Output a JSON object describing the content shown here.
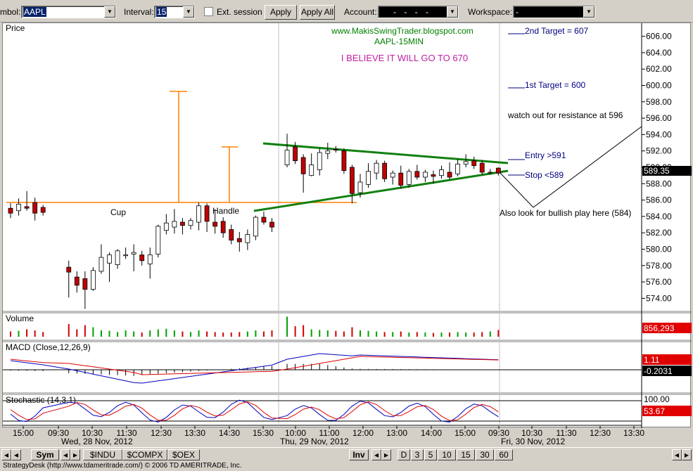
{
  "toolbar": {
    "symbol_label": "mbol:",
    "symbol_value": "AAPL",
    "interval_label": "Interval:",
    "interval_value": "15",
    "ext_session_label": "Ext. session",
    "apply_label": "Apply",
    "apply_all_label": "Apply All",
    "account_label": "Account:",
    "account_value": "- - - -",
    "workspace_label": "Workspace:",
    "workspace_value": "-"
  },
  "price_pane": {
    "title": "Price",
    "blog": "www.MakisSwingTrader.blogspot.com",
    "subtitle": "AAPL-15MIN",
    "belief": "I BELIEVE IT WILL GO TO 670",
    "target2": "2nd Target = 607",
    "target1": "1st Target = 600",
    "resistance": "watch out for resistance at 596",
    "entry": "Entry >591",
    "stop": "Stop <589",
    "bullish": "Also look for bullish play here (584)",
    "cup": "Cup",
    "handle": "Handle",
    "last_price": "589.35",
    "y_ticks": [
      "606.00",
      "604.00",
      "602.00",
      "600.00",
      "598.00",
      "596.00",
      "594.00",
      "592.00",
      "590.00",
      "588.00",
      "586.00",
      "584.00",
      "582.00",
      "580.00",
      "578.00",
      "576.00",
      "574.00"
    ]
  },
  "volume_pane": {
    "title": "Volume",
    "last": "856,293"
  },
  "macd_pane": {
    "title": "MACD (Close,12,26,9)",
    "value1": "1.11",
    "value2": "-0.2031"
  },
  "stoch_pane": {
    "title": "Stochastic (14,3,1)",
    "top": "100.00",
    "value": "53.67"
  },
  "x_axis": {
    "times": [
      "15:00",
      "09:30",
      "10:30",
      "11:30",
      "12:30",
      "13:30",
      "14:30",
      "15:30",
      "10:00",
      "11:00",
      "12:00",
      "13:00",
      "14:00",
      "15:00",
      "09:30",
      "10:30",
      "11:30",
      "12:30",
      "13:30"
    ],
    "dates": [
      "Wed, 28 Nov, 2012",
      "Thu, 29 Nov, 2012",
      "Fri, 30 Nov, 2012"
    ]
  },
  "navbar": {
    "sym": "Sym",
    "tabs": [
      "$INDU",
      "$COMPX",
      "$OEX"
    ],
    "inv": "Inv",
    "periods": [
      "D",
      "3",
      "5",
      "10",
      "15",
      "30",
      "60"
    ]
  },
  "status": "StrategyDesk (http://www.tdameritrade.com/) © 2006 TD AMERITRADE, Inc.",
  "chart_data": {
    "type": "candlestick",
    "title": "AAPL-15MIN",
    "ylabel": "Price",
    "ylim": [
      572.4,
      607.6
    ],
    "candles": [
      {
        "o": 585.0,
        "h": 585.6,
        "l": 583.8,
        "c": 584.4
      },
      {
        "o": 584.7,
        "h": 586.2,
        "l": 584.1,
        "c": 585.5
      },
      {
        "o": 585.2,
        "h": 587.1,
        "l": 584.7,
        "c": 585.0
      },
      {
        "o": 585.7,
        "h": 586.3,
        "l": 583.5,
        "c": 584.4
      },
      {
        "o": 585.1,
        "h": 585.4,
        "l": 584.1,
        "c": 584.5
      },
      {
        "o": 577.8,
        "h": 578.6,
        "l": 574.1,
        "c": 577.2
      },
      {
        "o": 576.6,
        "h": 577.3,
        "l": 574.7,
        "c": 575.6
      },
      {
        "o": 576.4,
        "h": 577.3,
        "l": 572.7,
        "c": 575.1
      },
      {
        "o": 575.1,
        "h": 577.8,
        "l": 574.9,
        "c": 577.4
      },
      {
        "o": 577.3,
        "h": 580.6,
        "l": 577.0,
        "c": 579.0
      },
      {
        "o": 578.3,
        "h": 579.6,
        "l": 576.0,
        "c": 579.3
      },
      {
        "o": 578.1,
        "h": 580.0,
        "l": 577.6,
        "c": 579.8
      },
      {
        "o": 579.2,
        "h": 580.2,
        "l": 578.8,
        "c": 579.3
      },
      {
        "o": 579.4,
        "h": 580.6,
        "l": 577.3,
        "c": 579.6
      },
      {
        "o": 579.3,
        "h": 579.8,
        "l": 578.0,
        "c": 578.6
      },
      {
        "o": 578.2,
        "h": 580.2,
        "l": 576.4,
        "c": 579.3
      },
      {
        "o": 579.4,
        "h": 583.0,
        "l": 579.0,
        "c": 582.8
      },
      {
        "o": 582.3,
        "h": 584.3,
        "l": 581.8,
        "c": 583.2
      },
      {
        "o": 582.7,
        "h": 584.9,
        "l": 581.9,
        "c": 583.4
      },
      {
        "o": 583.3,
        "h": 583.8,
        "l": 581.8,
        "c": 582.9
      },
      {
        "o": 582.9,
        "h": 583.8,
        "l": 582.4,
        "c": 583.5
      },
      {
        "o": 583.3,
        "h": 585.7,
        "l": 582.3,
        "c": 585.3
      },
      {
        "o": 585.3,
        "h": 585.6,
        "l": 582.1,
        "c": 583.4
      },
      {
        "o": 583.3,
        "h": 584.9,
        "l": 581.9,
        "c": 582.8
      },
      {
        "o": 583.4,
        "h": 583.9,
        "l": 581.4,
        "c": 582.0
      },
      {
        "o": 582.4,
        "h": 583.0,
        "l": 580.6,
        "c": 581.1
      },
      {
        "o": 581.3,
        "h": 582.1,
        "l": 579.7,
        "c": 580.9
      },
      {
        "o": 580.8,
        "h": 582.4,
        "l": 579.9,
        "c": 581.8
      },
      {
        "o": 581.6,
        "h": 584.1,
        "l": 581.1,
        "c": 583.9
      },
      {
        "o": 583.9,
        "h": 584.6,
        "l": 583.0,
        "c": 583.3
      },
      {
        "o": 583.3,
        "h": 583.8,
        "l": 582.1,
        "c": 582.7
      },
      {
        "o": 590.3,
        "h": 594.1,
        "l": 590.0,
        "c": 592.1
      },
      {
        "o": 592.5,
        "h": 593.1,
        "l": 590.4,
        "c": 590.8
      },
      {
        "o": 591.2,
        "h": 591.6,
        "l": 586.9,
        "c": 589.2
      },
      {
        "o": 589.0,
        "h": 591.7,
        "l": 588.9,
        "c": 590.3
      },
      {
        "o": 589.7,
        "h": 592.3,
        "l": 589.0,
        "c": 591.8
      },
      {
        "o": 591.7,
        "h": 593.0,
        "l": 591.0,
        "c": 592.0
      },
      {
        "o": 592.2,
        "h": 592.6,
        "l": 591.8,
        "c": 592.1
      },
      {
        "o": 592.0,
        "h": 592.3,
        "l": 589.2,
        "c": 589.6
      },
      {
        "o": 590.0,
        "h": 590.3,
        "l": 585.6,
        "c": 586.8
      },
      {
        "o": 586.9,
        "h": 589.2,
        "l": 586.3,
        "c": 588.2
      },
      {
        "o": 587.9,
        "h": 590.5,
        "l": 587.5,
        "c": 589.5
      },
      {
        "o": 589.3,
        "h": 590.9,
        "l": 588.5,
        "c": 590.5
      },
      {
        "o": 590.5,
        "h": 590.8,
        "l": 588.2,
        "c": 588.6
      },
      {
        "o": 588.8,
        "h": 589.6,
        "l": 587.9,
        "c": 589.3
      },
      {
        "o": 589.3,
        "h": 590.2,
        "l": 587.4,
        "c": 587.8
      },
      {
        "o": 587.9,
        "h": 589.8,
        "l": 587.5,
        "c": 589.5
      },
      {
        "o": 589.5,
        "h": 590.3,
        "l": 588.5,
        "c": 588.8
      },
      {
        "o": 588.8,
        "h": 589.7,
        "l": 588.2,
        "c": 589.4
      },
      {
        "o": 589.1,
        "h": 589.6,
        "l": 588.0,
        "c": 588.9
      },
      {
        "o": 589.0,
        "h": 590.2,
        "l": 588.6,
        "c": 589.7
      },
      {
        "o": 589.4,
        "h": 590.6,
        "l": 588.5,
        "c": 588.8
      },
      {
        "o": 589.2,
        "h": 591.0,
        "l": 588.9,
        "c": 590.4
      },
      {
        "o": 590.4,
        "h": 591.6,
        "l": 590.0,
        "c": 590.7
      },
      {
        "o": 590.8,
        "h": 591.3,
        "l": 589.8,
        "c": 590.2
      },
      {
        "o": 590.5,
        "h": 590.9,
        "l": 589.1,
        "c": 589.4
      },
      {
        "o": 589.4,
        "h": 589.8,
        "l": 589.1,
        "c": 589.4
      },
      {
        "o": 589.9,
        "h": 590.0,
        "l": 589.0,
        "c": 589.3
      }
    ],
    "volume_max": 856293
  }
}
